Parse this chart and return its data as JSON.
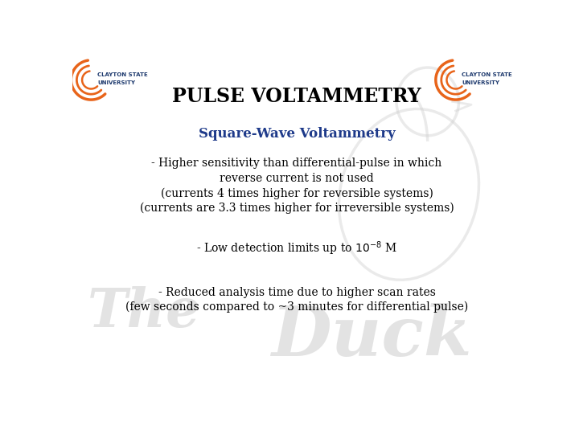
{
  "title": "PULSE VOLTAMMETRY",
  "subtitle": "Square-Wave Voltammetry",
  "bullet1_line1": "- Higher sensitivity than differential-pulse in which",
  "bullet1_line2": "reverse current is not used",
  "bullet1_line3": "(currents 4 times higher for reversible systems)",
  "bullet1_line4": "(currents are 3.3 times higher for irreversible systems)",
  "bullet2": "- Low detection limits up to $10^{-8}$ M",
  "bullet3_line1": "- Reduced analysis time due to higher scan rates",
  "bullet3_line2": "(few seconds compared to ~3 minutes for differential pulse)",
  "title_color": "#000000",
  "subtitle_color": "#1E3A8A",
  "body_color": "#000000",
  "bg_color": "#FFFFFF",
  "title_fontsize": 17,
  "subtitle_fontsize": 12,
  "body_fontsize": 10,
  "watermark_text1": "The",
  "watermark_text2": "Duck",
  "watermark_color": "#C8C8C8",
  "logo_color": "#E8641A",
  "logo_text_color": "#1E3A6E"
}
